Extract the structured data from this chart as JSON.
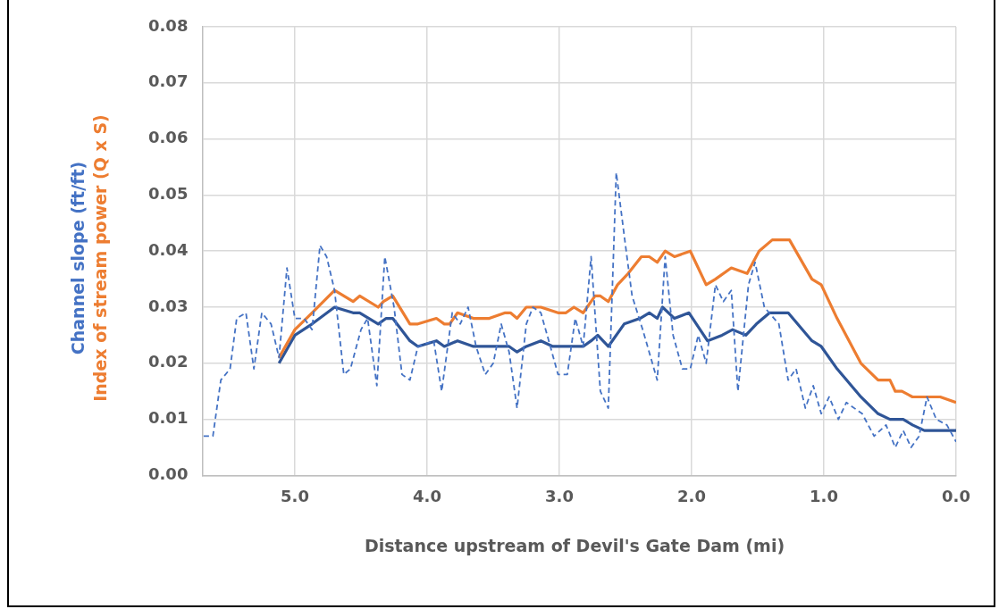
{
  "chart_data": {
    "type": "line",
    "xlabel": "Distance upstream of Devil's Gate Dam (mi)",
    "ylabel": "Channel slope (ft/ft)\nIndex of stream power (Q x S)",
    "xlim": [
      5.7,
      0
    ],
    "xticks": [
      {
        "value": 5,
        "label": "5.0"
      },
      {
        "value": 4,
        "label": "4.0"
      },
      {
        "value": 3,
        "label": "3.0"
      },
      {
        "value": 2,
        "label": "2.0"
      },
      {
        "value": 1,
        "label": "1.0"
      },
      {
        "value": 0,
        "label": "0.0"
      }
    ],
    "ylim": [
      0,
      0.08
    ],
    "yticks": [
      {
        "value": 0,
        "label": "0.00"
      },
      {
        "value": 0.01,
        "label": "0.01"
      },
      {
        "value": 0.02,
        "label": "0.02"
      },
      {
        "value": 0.03,
        "label": "0.03"
      },
      {
        "value": 0.04,
        "label": "0.04"
      },
      {
        "value": 0.05,
        "label": "0.05"
      },
      {
        "value": 0.06,
        "label": "0.06"
      },
      {
        "value": 0.07,
        "label": "0.07"
      },
      {
        "value": 0.08,
        "label": "0.08"
      }
    ],
    "grid": true,
    "legend": false,
    "marker": "none",
    "series": [
      {
        "color": "#4472c4",
        "line_style": "dashed",
        "x": [
          5.69,
          5.62,
          5.56,
          5.49,
          5.44,
          5.37,
          5.31,
          5.25,
          5.18,
          5.12,
          5.06,
          5.0,
          4.93,
          4.87,
          4.81,
          4.76,
          4.7,
          4.63,
          4.58,
          4.5,
          4.45,
          4.38,
          4.32,
          4.25,
          4.19,
          4.13,
          4.07,
          3.95,
          3.89,
          3.81,
          3.75,
          3.69,
          3.63,
          3.56,
          3.5,
          3.44,
          3.38,
          3.32,
          3.25,
          3.2,
          3.14,
          3.08,
          3.01,
          2.94,
          2.88,
          2.82,
          2.76,
          2.69,
          2.63,
          2.57,
          2.5,
          2.45,
          2.37,
          2.26,
          2.2,
          2.14,
          2.07,
          2.01,
          1.95,
          1.89,
          1.82,
          1.76,
          1.7,
          1.65,
          1.57,
          1.52,
          1.45,
          1.34,
          1.27,
          1.21,
          1.14,
          1.08,
          1.02,
          0.96,
          0.89,
          0.83,
          0.71,
          0.62,
          0.53,
          0.46,
          0.4,
          0.34,
          0.28,
          0.22,
          0.15,
          0.07,
          0.0
        ],
        "values": [
          0.007,
          0.007,
          0.017,
          0.019,
          0.028,
          0.029,
          0.019,
          0.029,
          0.027,
          0.021,
          0.037,
          0.028,
          0.028,
          0.026,
          0.041,
          0.039,
          0.033,
          0.018,
          0.019,
          0.026,
          0.028,
          0.016,
          0.039,
          0.03,
          0.018,
          0.017,
          0.023,
          0.024,
          0.015,
          0.029,
          0.027,
          0.03,
          0.023,
          0.018,
          0.02,
          0.027,
          0.022,
          0.012,
          0.027,
          0.03,
          0.029,
          0.024,
          0.018,
          0.018,
          0.028,
          0.023,
          0.039,
          0.015,
          0.012,
          0.054,
          0.041,
          0.032,
          0.026,
          0.017,
          0.039,
          0.025,
          0.019,
          0.019,
          0.025,
          0.02,
          0.034,
          0.031,
          0.033,
          0.015,
          0.034,
          0.038,
          0.03,
          0.027,
          0.017,
          0.019,
          0.012,
          0.016,
          0.011,
          0.014,
          0.01,
          0.013,
          0.011,
          0.007,
          0.009,
          0.005,
          0.008,
          0.005,
          0.007,
          0.014,
          0.01,
          0.009,
          0.006
        ]
      },
      {
        "color": "#ed7d31",
        "line_style": "solid",
        "x": [
          5.12,
          5.0,
          4.87,
          4.7,
          4.56,
          4.51,
          4.37,
          4.33,
          4.26,
          4.13,
          4.07,
          3.93,
          3.87,
          3.83,
          3.77,
          3.65,
          3.53,
          3.41,
          3.37,
          3.32,
          3.25,
          3.14,
          3.01,
          2.95,
          2.89,
          2.82,
          2.73,
          2.69,
          2.63,
          2.56,
          2.48,
          2.38,
          2.32,
          2.26,
          2.2,
          2.13,
          2.01,
          1.89,
          1.82,
          1.7,
          1.58,
          1.49,
          1.39,
          1.33,
          1.26,
          1.09,
          1.02,
          0.9,
          0.72,
          0.59,
          0.5,
          0.46,
          0.41,
          0.33,
          0.22,
          0.12,
          0.0
        ],
        "values": [
          0.021,
          0.026,
          0.029,
          0.033,
          0.031,
          0.032,
          0.03,
          0.031,
          0.032,
          0.027,
          0.027,
          0.028,
          0.027,
          0.027,
          0.029,
          0.028,
          0.028,
          0.029,
          0.029,
          0.028,
          0.03,
          0.03,
          0.029,
          0.029,
          0.03,
          0.029,
          0.032,
          0.032,
          0.031,
          0.034,
          0.036,
          0.039,
          0.039,
          0.038,
          0.04,
          0.039,
          0.04,
          0.034,
          0.035,
          0.037,
          0.036,
          0.04,
          0.042,
          0.042,
          0.042,
          0.035,
          0.034,
          0.028,
          0.02,
          0.017,
          0.017,
          0.015,
          0.015,
          0.014,
          0.014,
          0.014,
          0.013
        ]
      },
      {
        "color": "#2f5597",
        "line_style": "solid",
        "x": [
          5.12,
          5.0,
          4.87,
          4.7,
          4.56,
          4.51,
          4.37,
          4.31,
          4.26,
          4.13,
          4.07,
          3.93,
          3.87,
          3.77,
          3.65,
          3.53,
          3.38,
          3.32,
          3.25,
          3.14,
          3.05,
          2.95,
          2.89,
          2.82,
          2.76,
          2.71,
          2.63,
          2.51,
          2.39,
          2.32,
          2.26,
          2.22,
          2.13,
          2.02,
          1.88,
          1.77,
          1.69,
          1.59,
          1.51,
          1.41,
          1.34,
          1.27,
          1.09,
          1.02,
          0.9,
          0.72,
          0.59,
          0.5,
          0.46,
          0.4,
          0.33,
          0.24,
          0.12,
          0.0
        ],
        "values": [
          0.02,
          0.025,
          0.027,
          0.03,
          0.029,
          0.029,
          0.027,
          0.028,
          0.028,
          0.024,
          0.023,
          0.024,
          0.023,
          0.024,
          0.023,
          0.023,
          0.023,
          0.022,
          0.023,
          0.024,
          0.023,
          0.023,
          0.023,
          0.023,
          0.024,
          0.025,
          0.023,
          0.027,
          0.028,
          0.029,
          0.028,
          0.03,
          0.028,
          0.029,
          0.024,
          0.025,
          0.026,
          0.025,
          0.027,
          0.029,
          0.029,
          0.029,
          0.024,
          0.023,
          0.019,
          0.014,
          0.011,
          0.01,
          0.01,
          0.01,
          0.009,
          0.008,
          0.008,
          0.008
        ]
      }
    ]
  }
}
